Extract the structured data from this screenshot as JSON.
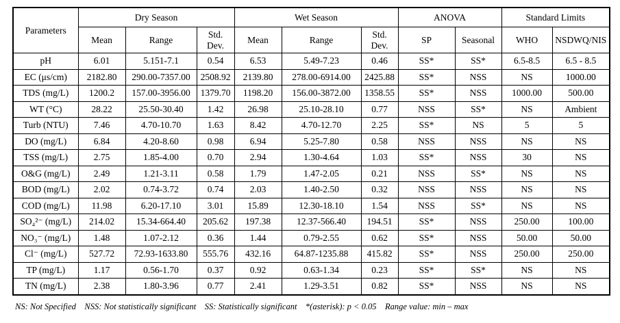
{
  "colors": {
    "background": "#ffffff",
    "border": "#000000",
    "text": "#000000"
  },
  "table": {
    "corner_header": "Parameters",
    "groups": [
      {
        "label": "Dry Season",
        "span": 3
      },
      {
        "label": "Wet Season",
        "span": 3
      },
      {
        "label": "ANOVA",
        "span": 2
      },
      {
        "label": "Standard Limits",
        "span": 2
      }
    ],
    "sub_headers": [
      "Mean",
      "Range",
      "Std.\nDev.",
      "Mean",
      "Range",
      "Std.\nDev.",
      "SP",
      "Seasonal",
      "WHO",
      "NSDWQ/NIS"
    ],
    "rows": [
      {
        "parameter": "pH",
        "cells": [
          "6.01",
          "5.151-7.1",
          "0.54",
          "6.53",
          "5.49-7.23",
          "0.46",
          "SS*",
          "SS*",
          "6.5-8.5",
          "6.5 - 8.5"
        ]
      },
      {
        "parameter": "EC (μs/cm)",
        "cells": [
          "2182.80",
          "290.00-7357.00",
          "2508.92",
          "2139.80",
          "278.00-6914.00",
          "2425.88",
          "SS*",
          "NSS",
          "NS",
          "1000.00"
        ]
      },
      {
        "parameter": "TDS (mg/L)",
        "cells": [
          "1200.2",
          "157.00-3956.00",
          "1379.70",
          "1198.20",
          "156.00-3872.00",
          "1358.55",
          "SS*",
          "NSS",
          "1000.00",
          "500.00"
        ]
      },
      {
        "parameter": "WT (°C)",
        "cells": [
          "28.22",
          "25.50-30.40",
          "1.42",
          "26.98",
          "25.10-28.10",
          "0.77",
          "NSS",
          "SS*",
          "NS",
          "Ambient"
        ]
      },
      {
        "parameter": "Turb (NTU)",
        "cells": [
          "7.46",
          "4.70-10.70",
          "1.63",
          "8.42",
          "4.70-12.70",
          "2.25",
          "SS*",
          "NS",
          "5",
          "5"
        ]
      },
      {
        "parameter": "DO (mg/L)",
        "cells": [
          "6.84",
          "4.20-8.60",
          "0.98",
          "6.94",
          "5.25-7.80",
          "0.58",
          "NSS",
          "NSS",
          "NS",
          "NS"
        ]
      },
      {
        "parameter": "TSS (mg/L)",
        "cells": [
          "2.75",
          "1.85-4.00",
          "0.70",
          "2.94",
          "1.30-4.64",
          "1.03",
          "SS*",
          "NSS",
          "30",
          "NS"
        ]
      },
      {
        "parameter": "O&G (mg/L)",
        "cells": [
          "2.49",
          "1.21-3.11",
          "0.58",
          "1.79",
          "1.47-2.05",
          "0.21",
          "NSS",
          "SS*",
          "NS",
          "NS"
        ]
      },
      {
        "parameter": "BOD (mg/L)",
        "cells": [
          "2.02",
          "0.74-3.72",
          "0.74",
          "2.03",
          "1.40-2.50",
          "0.32",
          "NSS",
          "NSS",
          "NS",
          "NS"
        ]
      },
      {
        "parameter": "COD (mg/L)",
        "cells": [
          "11.98",
          "6.20-17.10",
          "3.01",
          "15.89",
          "12.30-18.10",
          "1.54",
          "NSS",
          "SS*",
          "NS",
          "NS"
        ]
      },
      {
        "parameter": "SO₄²⁻  (mg/L)",
        "cells": [
          "214.02",
          "15.34-664.40",
          "205.62",
          "197.38",
          "12.37-566.40",
          "194.51",
          "SS*",
          "NSS",
          "250.00",
          "100.00"
        ]
      },
      {
        "parameter": "NO₃⁻  (mg/L)",
        "cells": [
          "1.48",
          "1.07-2.12",
          "0.36",
          "1.44",
          "0.79-2.55",
          "0.62",
          "SS*",
          "NSS",
          "50.00",
          "50.00"
        ]
      },
      {
        "parameter": "Cl⁻  (mg/L)",
        "cells": [
          "527.72",
          "72.93-1633.80",
          "555.76",
          "432.16",
          "64.87-1235.88",
          "415.82",
          "SS*",
          "NSS",
          "250.00",
          "250.00"
        ]
      },
      {
        "parameter": "TP (mg/L)",
        "cells": [
          "1.17",
          "0.56-1.70",
          "0.37",
          "0.92",
          "0.63-1.34",
          "0.23",
          "SS*",
          "SS*",
          "NS",
          "NS"
        ]
      },
      {
        "parameter": "TN (mg/L)",
        "cells": [
          "2.38",
          "1.80-3.96",
          "0.77",
          "2.41",
          "1.29-3.51",
          "0.82",
          "SS*",
          "NSS",
          "NS",
          "NS"
        ]
      }
    ]
  },
  "footnote": {
    "text": "NS: Not Specified    NSS: Not statistically significant    SS: Statistically significant    *(asterisk): p < 0.05    Range value: min – max"
  }
}
